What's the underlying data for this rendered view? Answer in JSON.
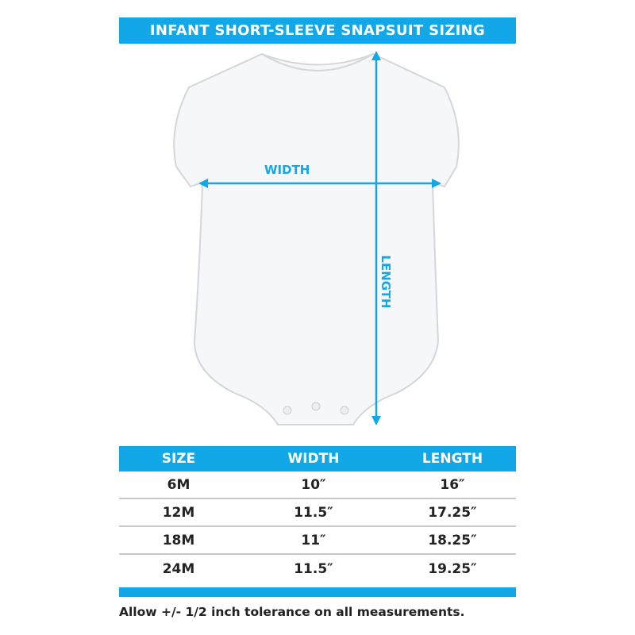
{
  "title": "INFANT SHORT-SLEEVE SNAPSUIT SIZING",
  "diagram": {
    "width_label": "WIDTH",
    "length_label": "LENGTH"
  },
  "table": {
    "headers": [
      "SIZE",
      "WIDTH",
      "LENGTH"
    ],
    "rows": [
      [
        "6M",
        "10″",
        "16″"
      ],
      [
        "12M",
        "11.5″",
        "17.25″"
      ],
      [
        "18M",
        "11″",
        "18.25″"
      ],
      [
        "24M",
        "11.5″",
        "19.25″"
      ]
    ]
  },
  "note": "Allow +/- 1/2 inch tolerance on all measurements.",
  "colors": {
    "accent": "#12a8e8",
    "text": "#222222"
  }
}
